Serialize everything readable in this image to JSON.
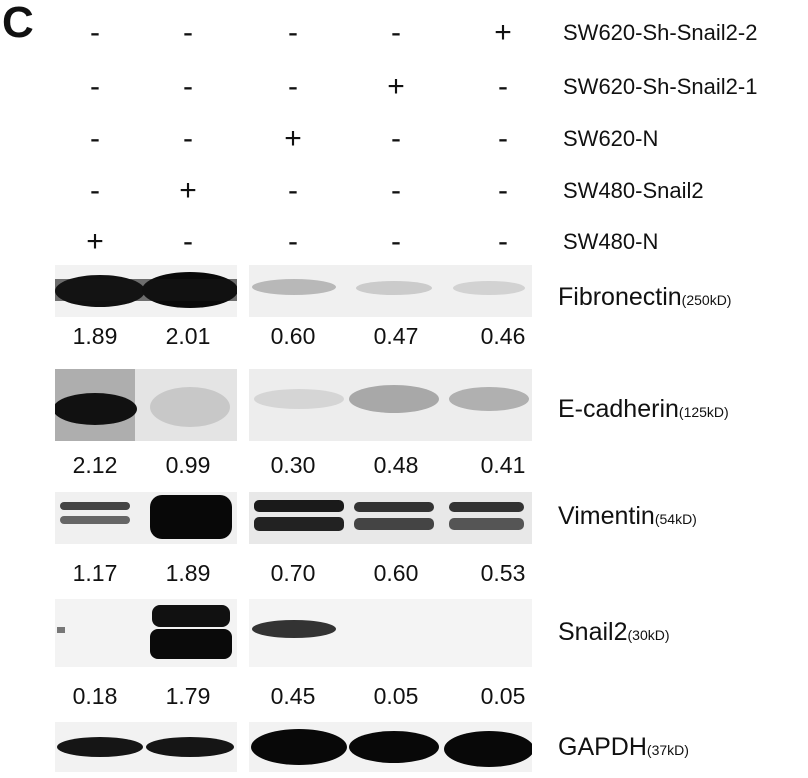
{
  "panel_label": "C",
  "conditions": [
    {
      "label": "SW620-Sh-Snail2-2",
      "signs": [
        "-",
        "-",
        "-",
        "-",
        "+"
      ]
    },
    {
      "label": "SW620-Sh-Snail2-1",
      "signs": [
        "-",
        "-",
        "-",
        "+",
        "-"
      ]
    },
    {
      "label": "SW620-N",
      "signs": [
        "-",
        "-",
        "+",
        "-",
        "-"
      ]
    },
    {
      "label": "SW480-Snail2",
      "signs": [
        "-",
        "+",
        "-",
        "-",
        "-"
      ]
    },
    {
      "label": "SW480-N",
      "signs": [
        "+",
        "-",
        "-",
        "-",
        "-"
      ]
    }
  ],
  "blots": [
    {
      "name": "Fibronectin",
      "mw": "(250kD)",
      "values": [
        "1.89",
        "2.01",
        "0.60",
        "0.47",
        "0.46"
      ]
    },
    {
      "name": "E-cadherin",
      "mw": "(125kD)",
      "values": [
        "2.12",
        "0.99",
        "0.30",
        "0.48",
        "0.41"
      ]
    },
    {
      "name": "Vimentin",
      "mw": "(54kD)",
      "values": [
        "1.17",
        "1.89",
        "0.70",
        "0.60",
        "0.53"
      ]
    },
    {
      "name": "Snail2",
      "mw": "(30kD)",
      "values": [
        "0.18",
        "1.79",
        "0.45",
        "0.05",
        "0.05"
      ]
    },
    {
      "name": "GAPDH",
      "mw": "(37kD)",
      "values": []
    }
  ]
}
